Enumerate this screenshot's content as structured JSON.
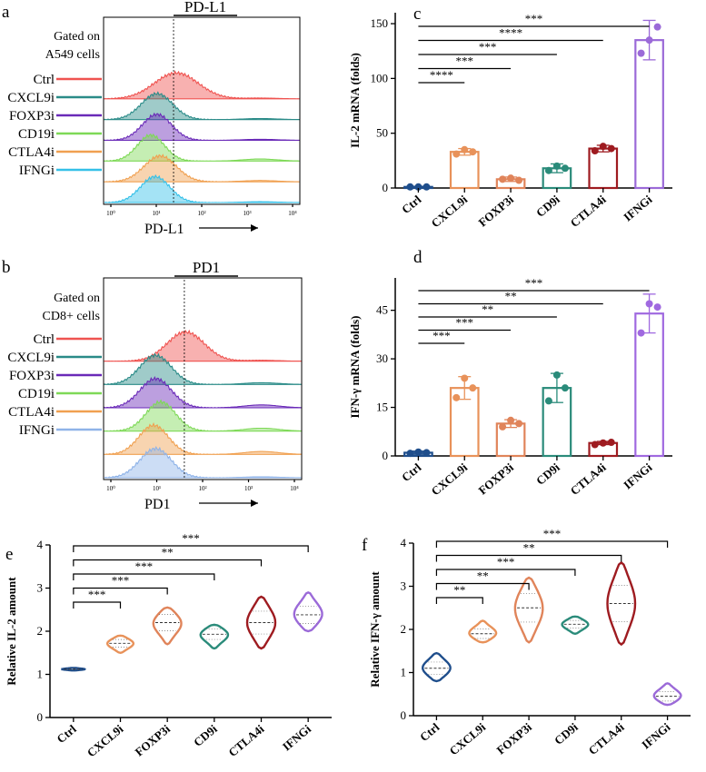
{
  "chart_data": [
    {
      "panel": "a",
      "type": "area",
      "title": "PD-L1",
      "gate_note": [
        "Gated on",
        "A549 cells"
      ],
      "legend": [
        "Ctrl",
        "CXCL9i",
        "FOXP3i",
        "CD19i",
        "CTLA4i",
        "IFNGi"
      ],
      "xlabel": "PD-L1",
      "x_ticks": [
        "10⁰",
        "10¹",
        "10²",
        "10³",
        "10⁴"
      ],
      "xlim": [
        1,
        10000
      ],
      "gate_line_x": 24,
      "series": [
        {
          "name": "Ctrl",
          "peak": 30,
          "width": 0.45,
          "tail": 0.03
        },
        {
          "name": "CXCL9i",
          "peak": 12,
          "width": 0.32,
          "tail": 0.04
        },
        {
          "name": "FOXP3i",
          "peak": 12,
          "width": 0.3,
          "tail": 0.04
        },
        {
          "name": "CD19i",
          "peak": 9,
          "width": 0.28,
          "tail": 0.08
        },
        {
          "name": "CTLA4i",
          "peak": 14,
          "width": 0.33,
          "tail": 0.05
        },
        {
          "name": "IFNGi",
          "peak": 11,
          "width": 0.3,
          "tail": 0.03
        }
      ]
    },
    {
      "panel": "b",
      "type": "area",
      "title": "PD1",
      "gate_note": [
        "Gated on",
        "CD8+ cells"
      ],
      "legend": [
        "Ctrl",
        "CXCL9i",
        "FOXP3i",
        "CD19i",
        "CTLA4i",
        "IFNGi"
      ],
      "xlabel": "PD1",
      "x_ticks": [
        "10⁰",
        "10¹",
        "10²",
        "10³",
        "10⁴"
      ],
      "xlim": [
        1,
        10000
      ],
      "gate_line_x": 40,
      "series": [
        {
          "name": "Ctrl",
          "peak": 45,
          "width": 0.38,
          "tail": 0.03
        },
        {
          "name": "CXCL9i",
          "peak": 11,
          "width": 0.32,
          "tail": 0.06
        },
        {
          "name": "FOXP3i",
          "peak": 11,
          "width": 0.32,
          "tail": 0.1
        },
        {
          "name": "CD19i",
          "peak": 14,
          "width": 0.3,
          "tail": 0.1
        },
        {
          "name": "CTLA4i",
          "peak": 10,
          "width": 0.3,
          "tail": 0.1
        },
        {
          "name": "IFNGi",
          "peak": 11,
          "width": 0.32,
          "tail": 0.03
        }
      ]
    },
    {
      "panel": "c",
      "type": "bar",
      "ylabel": "IL-2 mRNA (folds)",
      "ylim": [
        0,
        160
      ],
      "y_ticks": [
        0,
        50,
        100,
        150
      ],
      "categories": [
        "Ctrl",
        "CXCL9i",
        "FOXP3i",
        "CD9i",
        "CTLA4i",
        "IFNGi"
      ],
      "values": [
        1,
        33,
        8,
        18,
        36,
        135
      ],
      "errors": [
        0.5,
        3,
        2,
        4,
        3,
        18
      ],
      "points": [
        [
          1,
          1,
          1
        ],
        [
          31,
          35,
          33
        ],
        [
          8,
          9,
          7
        ],
        [
          16,
          20,
          18
        ],
        [
          34,
          38,
          36
        ],
        [
          123,
          135,
          147
        ]
      ],
      "significance": [
        {
          "to": "CXCL9i",
          "label": "****"
        },
        {
          "to": "FOXP3i",
          "label": "***"
        },
        {
          "to": "CD9i",
          "label": "***"
        },
        {
          "to": "CTLA4i",
          "label": "****"
        },
        {
          "to": "IFNGi",
          "label": "***"
        }
      ]
    },
    {
      "panel": "d",
      "type": "bar",
      "ylabel": "IFN-γ mRNA (folds)",
      "ylim": [
        0,
        55
      ],
      "y_ticks": [
        0,
        15,
        30,
        45
      ],
      "categories": [
        "Ctrl",
        "CXCL9i",
        "FOXP3i",
        "CD9i",
        "CTLA4i",
        "IFNGi"
      ],
      "values": [
        1,
        21,
        10,
        21,
        4,
        44
      ],
      "errors": [
        0.5,
        3.5,
        1.2,
        4.5,
        0.5,
        6
      ],
      "points": [
        [
          0.8,
          1.2,
          1
        ],
        [
          18,
          24,
          21
        ],
        [
          9,
          11,
          10
        ],
        [
          17,
          25,
          21
        ],
        [
          3.5,
          4,
          4.2
        ],
        [
          38,
          47,
          46
        ]
      ],
      "significance": [
        {
          "to": "CXCL9i",
          "label": "***"
        },
        {
          "to": "FOXP3i",
          "label": "***"
        },
        {
          "to": "CD9i",
          "label": "**"
        },
        {
          "to": "CTLA4i",
          "label": "**"
        },
        {
          "to": "IFNGi",
          "label": "***"
        }
      ]
    },
    {
      "panel": "e",
      "type": "violin",
      "ylabel": "Relative IL-2 amount",
      "ylim": [
        0,
        4
      ],
      "y_ticks": [
        0,
        1,
        2,
        3,
        4
      ],
      "categories": [
        "Ctrl",
        "CXCL9i",
        "FOXP3i",
        "CD9i",
        "CTLA4i",
        "IFNGi"
      ],
      "medians": [
        1.12,
        1.72,
        2.2,
        1.93,
        2.2,
        2.38
      ],
      "ranges": [
        [
          1.09,
          1.15
        ],
        [
          1.5,
          1.9
        ],
        [
          1.7,
          2.55
        ],
        [
          1.6,
          2.15
        ],
        [
          1.6,
          2.8
        ],
        [
          2.0,
          2.9
        ]
      ],
      "significance": [
        {
          "to": "CXCL9i",
          "label": "***"
        },
        {
          "to": "FOXP3i",
          "label": "***"
        },
        {
          "to": "CD9i",
          "label": "***"
        },
        {
          "to": "CTLA4i",
          "label": "**"
        },
        {
          "to": "IFNGi",
          "label": "***"
        }
      ]
    },
    {
      "panel": "f",
      "type": "violin",
      "ylabel": "Relative IFN-γ amount",
      "ylim": [
        0,
        4
      ],
      "y_ticks": [
        0,
        1,
        2,
        3,
        4
      ],
      "categories": [
        "Ctrl",
        "CXCL9i",
        "FOXP3i",
        "CD9i",
        "CTLA4i",
        "IFNGi"
      ],
      "medians": [
        1.1,
        1.9,
        2.5,
        2.12,
        2.6,
        0.45
      ],
      "ranges": [
        [
          0.8,
          1.45
        ],
        [
          1.7,
          2.2
        ],
        [
          1.7,
          3.2
        ],
        [
          1.9,
          2.3
        ],
        [
          1.65,
          3.55
        ],
        [
          0.25,
          0.75
        ]
      ],
      "significance": [
        {
          "to": "CXCL9i",
          "label": "**"
        },
        {
          "to": "FOXP3i",
          "label": "**"
        },
        {
          "to": "CD9i",
          "label": "***"
        },
        {
          "to": "CTLA4i",
          "label": "**"
        },
        {
          "to": "IFNGi",
          "label": "***"
        }
      ]
    }
  ],
  "panel_labels": [
    "a",
    "b",
    "c",
    "d",
    "e",
    "f"
  ],
  "colors": {
    "Ctrl": "#ef5350",
    "CXCL9i": "#2a8b88",
    "FOXP3i": "#6a2ab8",
    "CD19i": "#7ed957",
    "CTLA4i": "#f0a050",
    "IFNGi": "#35c0e8",
    "bar_Ctrl": "#1f4e8c",
    "bar_CXCL9i": "#e8925a",
    "bar_FOXP3i": "#e0845a",
    "bar_CD9i": "#2a8b7a",
    "bar_CTLA4i": "#9e1b20",
    "bar_IFNGi": "#9b6ad8",
    "bar_IFNGi_d": "#a069e0",
    "b_IFNGi": "#8fb3e8"
  }
}
